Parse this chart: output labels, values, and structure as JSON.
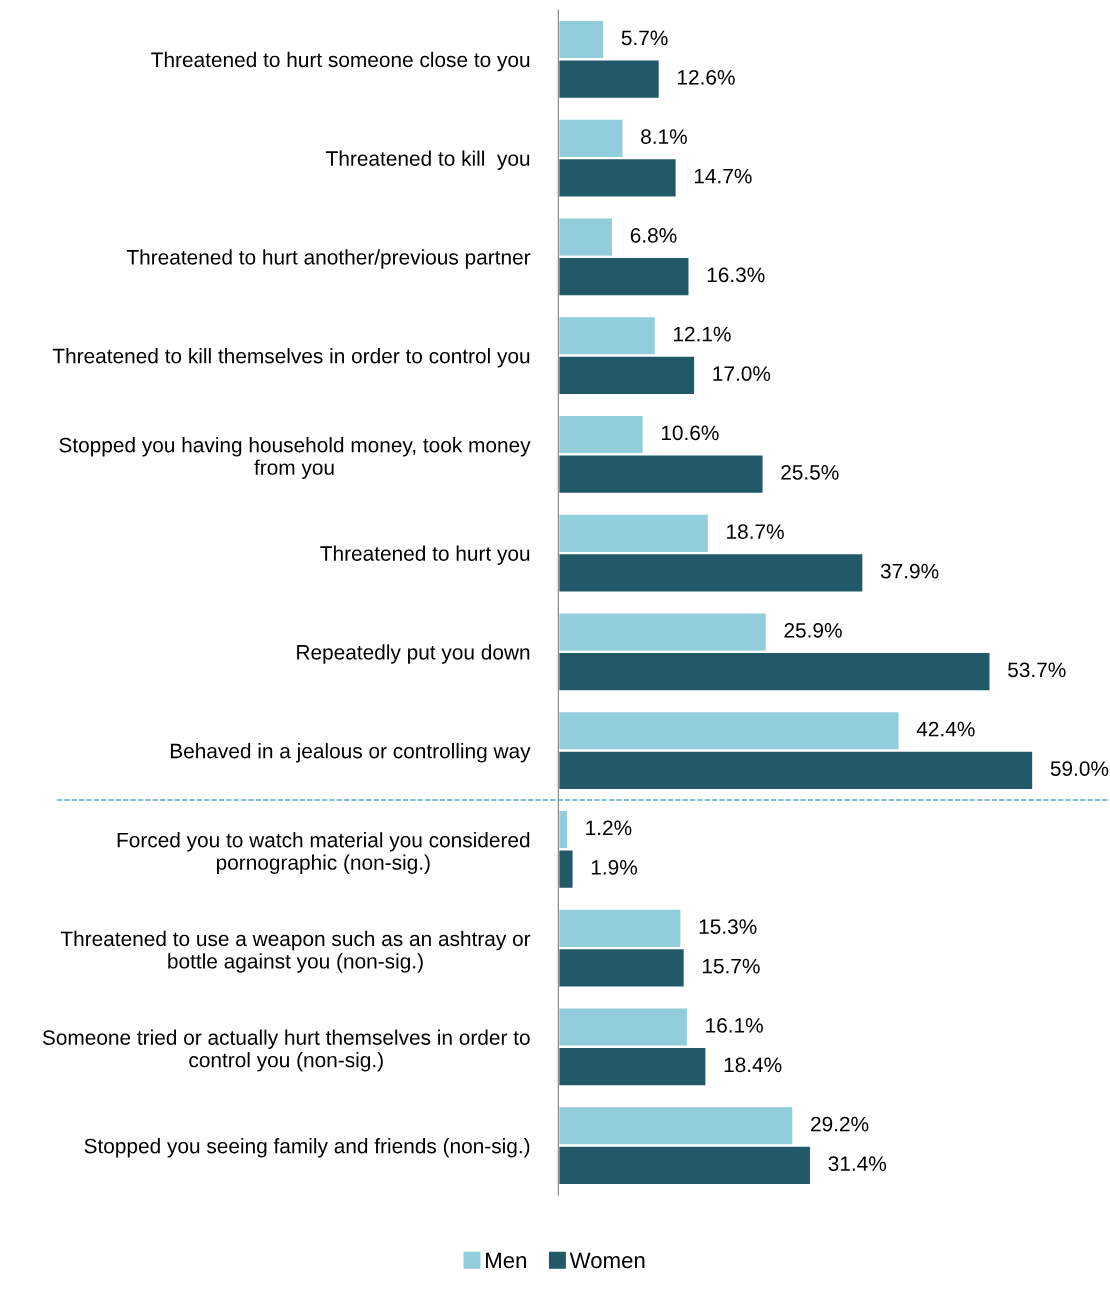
{
  "chart_data": [
    {
      "type": "bar",
      "orientation": "horizontal",
      "categories": [
        "Threatened to hurt someone close to you",
        "Threatened to kill  you",
        "Threatened to hurt another/previous partner",
        "Threatened to kill themselves in order to control you",
        "Stopped you having household money, took money\nfrom you",
        "Threatened to hurt you",
        "Repeatedly put you down",
        "Behaved in a jealous or controlling way"
      ],
      "series": [
        {
          "name": "Men",
          "color": "#92cddc",
          "values": [
            5.7,
            8.1,
            6.8,
            12.1,
            10.6,
            18.7,
            25.9,
            42.4
          ],
          "value_labels": [
            "5.7%",
            "8.1%",
            "6.8%",
            "12.1%",
            "10.6%",
            "18.7%",
            "25.9%",
            "42.4%"
          ]
        },
        {
          "name": "Women",
          "color": "#215968",
          "values": [
            12.6,
            14.7,
            16.3,
            17.0,
            25.5,
            37.9,
            53.7,
            59.0
          ],
          "value_labels": [
            "12.6%",
            "14.7%",
            "16.3%",
            "17.0%",
            "25.5%",
            "37.9%",
            "53.7%",
            "59.0%"
          ]
        }
      ],
      "legend": "bottom",
      "grid": false,
      "tick_labels": "y"
    },
    {
      "type": "bar",
      "orientation": "horizontal",
      "categories": [
        "Forced you to watch material you considered\npornographic (non-sig.)",
        "Threatened to use a weapon such as an ashtray or\nbottle against you (non-sig.)",
        "Someone tried or actually hurt themselves in order to\ncontrol you (non-sig.)",
        "Stopped you seeing family and friends (non-sig.)"
      ],
      "series": [
        {
          "color": "#92cddc",
          "values": [
            1.2,
            15.3,
            16.1,
            29.2
          ],
          "value_labels": [
            "1.2%",
            "15.3%",
            "16.1%",
            "29.2%"
          ]
        },
        {
          "color": "#215968",
          "values": [
            1.9,
            15.7,
            18.4,
            31.4
          ],
          "value_labels": [
            "1.9%",
            "15.7%",
            "18.4%",
            "31.4%"
          ]
        }
      ],
      "grid": false,
      "tick_labels": "y"
    }
  ]
}
